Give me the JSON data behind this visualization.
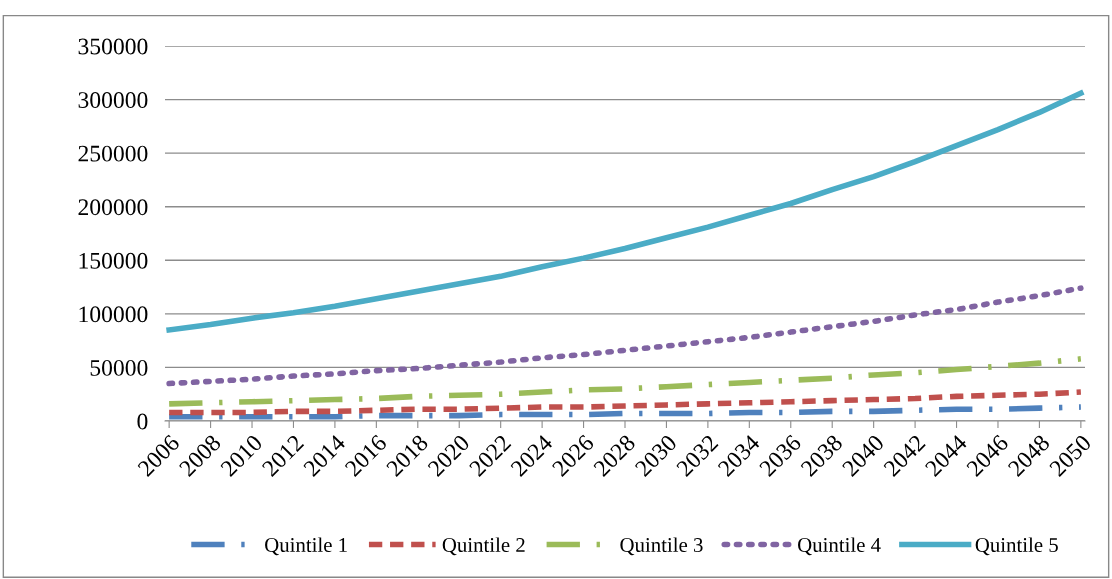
{
  "chart_data": {
    "type": "line",
    "categories": [
      "2006",
      "2008",
      "2010",
      "2012",
      "2014",
      "2016",
      "2018",
      "2020",
      "2022",
      "2024",
      "2026",
      "2028",
      "2030",
      "2032",
      "2034",
      "2036",
      "2038",
      "2040",
      "2042",
      "2044",
      "2046",
      "2048",
      "2050"
    ],
    "series": [
      {
        "name": "Quintile 1",
        "color": "#4f81bd",
        "line_style": "dashdot",
        "values": [
          4000,
          4000,
          4000,
          4000,
          4000,
          5000,
          5000,
          5000,
          6000,
          6000,
          6000,
          7000,
          7000,
          7000,
          8000,
          8000,
          9000,
          9000,
          10000,
          11000,
          11000,
          12000,
          13000
        ]
      },
      {
        "name": "Quintile 2",
        "color": "#c0504d",
        "line_style": "dashed",
        "values": [
          8000,
          8000,
          8000,
          9000,
          9000,
          10000,
          11000,
          11000,
          12000,
          13000,
          13000,
          14000,
          15000,
          16000,
          17000,
          18000,
          19000,
          20000,
          21000,
          23000,
          24000,
          25000,
          27000
        ]
      },
      {
        "name": "Quintile 3",
        "color": "#9bbb59",
        "line_style": "dashdot",
        "values": [
          16000,
          17000,
          18000,
          19000,
          20000,
          21000,
          23000,
          24000,
          25000,
          27000,
          29000,
          30000,
          32000,
          34000,
          36000,
          38000,
          40000,
          43000,
          45000,
          48000,
          51000,
          54000,
          58000
        ]
      },
      {
        "name": "Quintile 4",
        "color": "#8064a2",
        "line_style": "dotted",
        "values": [
          35000,
          37000,
          39000,
          42000,
          44000,
          47000,
          49000,
          52000,
          55000,
          59000,
          62000,
          66000,
          70000,
          74000,
          78000,
          83000,
          88000,
          93000,
          99000,
          104000,
          111000,
          117000,
          124000
        ]
      },
      {
        "name": "Quintile 5",
        "color": "#4bacc6",
        "line_style": "solid",
        "values": [
          85000,
          90000,
          96000,
          101000,
          107000,
          114000,
          121000,
          128000,
          135000,
          144000,
          152000,
          161000,
          171000,
          181000,
          192000,
          203000,
          216000,
          228000,
          242000,
          257000,
          272000,
          288000,
          306000
        ]
      }
    ],
    "ylim": [
      0,
      350000
    ],
    "yticks": [
      0,
      50000,
      100000,
      150000,
      200000,
      250000,
      300000,
      350000
    ],
    "grid": "y",
    "legend": "bottom",
    "marker": "none"
  }
}
